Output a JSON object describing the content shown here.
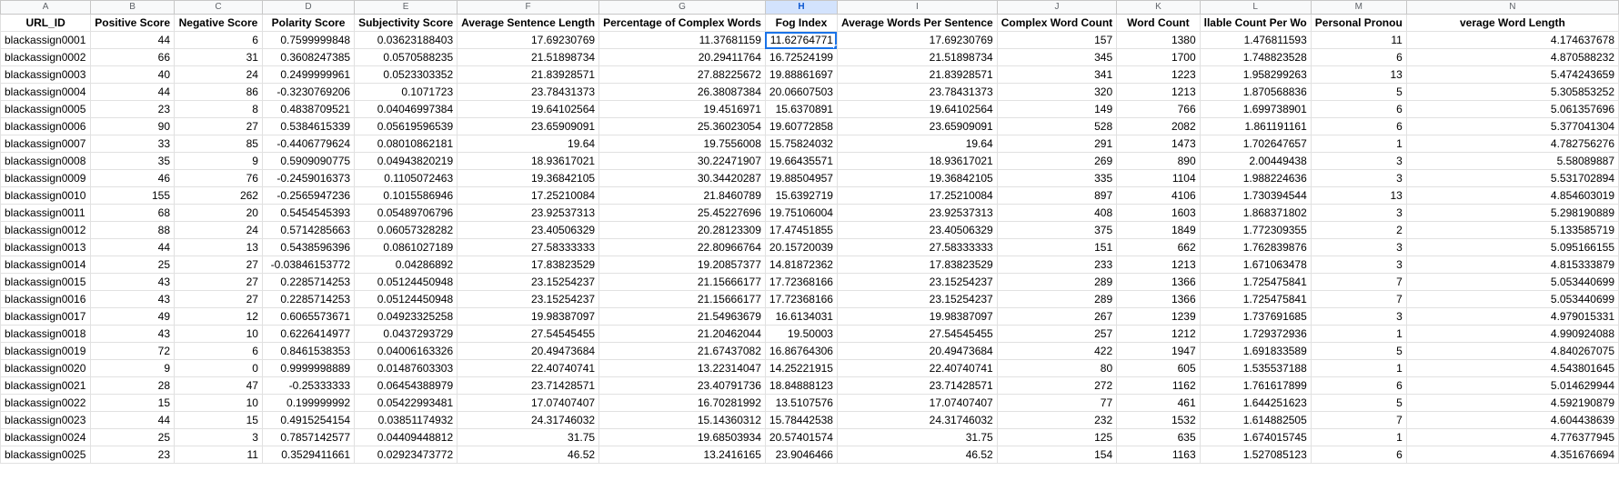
{
  "columns": [
    {
      "letter": "A",
      "header": "URL_ID"
    },
    {
      "letter": "B",
      "header": "Positive Score"
    },
    {
      "letter": "C",
      "header": "Negative Score"
    },
    {
      "letter": "D",
      "header": "Polarity Score"
    },
    {
      "letter": "E",
      "header": "Subjectivity Score"
    },
    {
      "letter": "F",
      "header": "Average Sentence Length"
    },
    {
      "letter": "G",
      "header": "Percentage of Complex Words"
    },
    {
      "letter": "H",
      "header": "Fog Index"
    },
    {
      "letter": "I",
      "header": "Average Words Per Sentence"
    },
    {
      "letter": "J",
      "header": "Complex Word Count"
    },
    {
      "letter": "K",
      "header": "Word Count"
    },
    {
      "letter": "L",
      "header": "llable Count Per Wo"
    },
    {
      "letter": "M",
      "header": "Personal Pronou"
    },
    {
      "letter": "N",
      "header": "verage Word Length"
    }
  ],
  "selected_column": "H",
  "active_cell": {
    "row": 0,
    "col": 7
  },
  "rows": [
    [
      "blackassign0001",
      "44",
      "6",
      "0.7599999848",
      "0.03623188403",
      "17.69230769",
      "11.37681159",
      "11.62764771",
      "17.69230769",
      "157",
      "1380",
      "1.476811593",
      "11",
      "4.174637678"
    ],
    [
      "blackassign0002",
      "66",
      "31",
      "0.3608247385",
      "0.0570588235",
      "21.51898734",
      "20.29411764",
      "16.72524199",
      "21.51898734",
      "345",
      "1700",
      "1.748823528",
      "6",
      "4.870588232"
    ],
    [
      "blackassign0003",
      "40",
      "24",
      "0.2499999961",
      "0.0523303352",
      "21.83928571",
      "27.88225672",
      "19.88861697",
      "21.83928571",
      "341",
      "1223",
      "1.958299263",
      "13",
      "5.474243659"
    ],
    [
      "blackassign0004",
      "44",
      "86",
      "-0.3230769206",
      "0.1071723",
      "23.78431373",
      "26.38087384",
      "20.06607503",
      "23.78431373",
      "320",
      "1213",
      "1.870568836",
      "5",
      "5.305853252"
    ],
    [
      "blackassign0005",
      "23",
      "8",
      "0.4838709521",
      "0.04046997384",
      "19.64102564",
      "19.4516971",
      "15.6370891",
      "19.64102564",
      "149",
      "766",
      "1.699738901",
      "6",
      "5.061357696"
    ],
    [
      "blackassign0006",
      "90",
      "27",
      "0.5384615339",
      "0.05619596539",
      "23.65909091",
      "25.36023054",
      "19.60772858",
      "23.65909091",
      "528",
      "2082",
      "1.861191161",
      "6",
      "5.377041304"
    ],
    [
      "blackassign0007",
      "33",
      "85",
      "-0.4406779624",
      "0.08010862181",
      "19.64",
      "19.7556008",
      "15.75824032",
      "19.64",
      "291",
      "1473",
      "1.702647657",
      "1",
      "4.782756276"
    ],
    [
      "blackassign0008",
      "35",
      "9",
      "0.5909090775",
      "0.04943820219",
      "18.93617021",
      "30.22471907",
      "19.66435571",
      "18.93617021",
      "269",
      "890",
      "2.00449438",
      "3",
      "5.58089887"
    ],
    [
      "blackassign0009",
      "46",
      "76",
      "-0.2459016373",
      "0.1105072463",
      "19.36842105",
      "30.34420287",
      "19.88504957",
      "19.36842105",
      "335",
      "1104",
      "1.988224636",
      "3",
      "5.531702894"
    ],
    [
      "blackassign0010",
      "155",
      "262",
      "-0.2565947236",
      "0.1015586946",
      "17.25210084",
      "21.8460789",
      "15.6392719",
      "17.25210084",
      "897",
      "4106",
      "1.730394544",
      "13",
      "4.854603019"
    ],
    [
      "blackassign0011",
      "68",
      "20",
      "0.5454545393",
      "0.05489706796",
      "23.92537313",
      "25.45227696",
      "19.75106004",
      "23.92537313",
      "408",
      "1603",
      "1.868371802",
      "3",
      "5.298190889"
    ],
    [
      "blackassign0012",
      "88",
      "24",
      "0.5714285663",
      "0.06057328282",
      "23.40506329",
      "20.28123309",
      "17.47451855",
      "23.40506329",
      "375",
      "1849",
      "1.772309355",
      "2",
      "5.133585719"
    ],
    [
      "blackassign0013",
      "44",
      "13",
      "0.5438596396",
      "0.0861027189",
      "27.58333333",
      "22.80966764",
      "20.15720039",
      "27.58333333",
      "151",
      "662",
      "1.762839876",
      "3",
      "5.095166155"
    ],
    [
      "blackassign0014",
      "25",
      "27",
      "-0.03846153772",
      "0.04286892",
      "17.83823529",
      "19.20857377",
      "14.81872362",
      "17.83823529",
      "233",
      "1213",
      "1.671063478",
      "3",
      "4.815333879"
    ],
    [
      "blackassign0015",
      "43",
      "27",
      "0.2285714253",
      "0.05124450948",
      "23.15254237",
      "21.15666177",
      "17.72368166",
      "23.15254237",
      "289",
      "1366",
      "1.725475841",
      "7",
      "5.053440699"
    ],
    [
      "blackassign0016",
      "43",
      "27",
      "0.2285714253",
      "0.05124450948",
      "23.15254237",
      "21.15666177",
      "17.72368166",
      "23.15254237",
      "289",
      "1366",
      "1.725475841",
      "7",
      "5.053440699"
    ],
    [
      "blackassign0017",
      "49",
      "12",
      "0.6065573671",
      "0.04923325258",
      "19.98387097",
      "21.54963679",
      "16.6134031",
      "19.98387097",
      "267",
      "1239",
      "1.737691685",
      "3",
      "4.979015331"
    ],
    [
      "blackassign0018",
      "43",
      "10",
      "0.6226414977",
      "0.0437293729",
      "27.54545455",
      "21.20462044",
      "19.50003",
      "27.54545455",
      "257",
      "1212",
      "1.729372936",
      "1",
      "4.990924088"
    ],
    [
      "blackassign0019",
      "72",
      "6",
      "0.8461538353",
      "0.04006163326",
      "20.49473684",
      "21.67437082",
      "16.86764306",
      "20.49473684",
      "422",
      "1947",
      "1.691833589",
      "5",
      "4.840267075"
    ],
    [
      "blackassign0020",
      "9",
      "0",
      "0.9999998889",
      "0.01487603303",
      "22.40740741",
      "13.22314047",
      "14.25221915",
      "22.40740741",
      "80",
      "605",
      "1.535537188",
      "1",
      "4.543801645"
    ],
    [
      "blackassign0021",
      "28",
      "47",
      "-0.25333333",
      "0.06454388979",
      "23.71428571",
      "23.40791736",
      "18.84888123",
      "23.71428571",
      "272",
      "1162",
      "1.761617899",
      "6",
      "5.014629944"
    ],
    [
      "blackassign0022",
      "15",
      "10",
      "0.199999992",
      "0.05422993481",
      "17.07407407",
      "16.70281992",
      "13.5107576",
      "17.07407407",
      "77",
      "461",
      "1.644251623",
      "5",
      "4.592190879"
    ],
    [
      "blackassign0023",
      "44",
      "15",
      "0.4915254154",
      "0.03851174932",
      "24.31746032",
      "15.14360312",
      "15.78442538",
      "24.31746032",
      "232",
      "1532",
      "1.614882505",
      "7",
      "4.604438639"
    ],
    [
      "blackassign0024",
      "25",
      "3",
      "0.7857142577",
      "0.04409448812",
      "31.75",
      "19.68503934",
      "20.57401574",
      "31.75",
      "125",
      "635",
      "1.674015745",
      "1",
      "4.776377945"
    ],
    [
      "blackassign0025",
      "23",
      "11",
      "0.3529411661",
      "0.02923473772",
      "46.52",
      "13.2416165",
      "23.9046466",
      "46.52",
      "154",
      "1163",
      "1.527085123",
      "6",
      "4.351676694"
    ]
  ]
}
